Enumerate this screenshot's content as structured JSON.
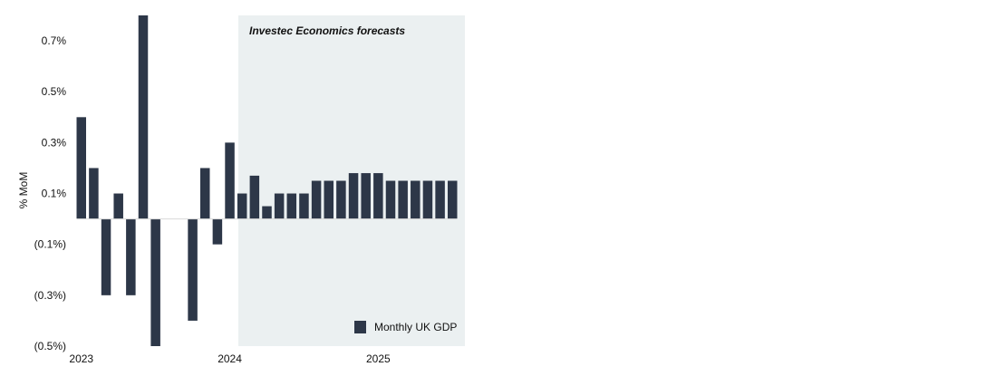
{
  "chart_data": {
    "type": "bar",
    "ylabel": "% MoM",
    "ylim": [
      -0.5,
      0.8
    ],
    "y_ticks": [
      0.7,
      0.5,
      0.3,
      0.1,
      -0.1,
      -0.3,
      -0.5
    ],
    "y_tick_labels": [
      "0.7%",
      "0.5%",
      "0.3%",
      "0.1%",
      "(0.1%)",
      "(0.3%)",
      "(0.5%)"
    ],
    "x_tick_labels": [
      "2023",
      "2024",
      "2025"
    ],
    "x_tick_month_index": [
      0,
      12,
      24
    ],
    "months": [
      "Jan 2023",
      "Feb 2023",
      "Mar 2023",
      "Apr 2023",
      "May 2023",
      "Jun 2023",
      "Jul 2023",
      "Aug 2023",
      "Sep 2023",
      "Oct 2023",
      "Nov 2023",
      "Dec 2023",
      "Jan 2024",
      "Feb 2024",
      "Mar 2024",
      "Apr 2024",
      "May 2024",
      "Jun 2024",
      "Jul 2024",
      "Aug 2024",
      "Sep 2024",
      "Oct 2024",
      "Nov 2024",
      "Dec 2024",
      "Jan 2025",
      "Feb 2025",
      "Mar 2025",
      "Apr 2025",
      "May 2025",
      "Jun 2025",
      "Jul 2025"
    ],
    "series": [
      {
        "name": "Monthly UK GDP",
        "color": "#2d3748",
        "values": [
          0.4,
          0.2,
          -0.3,
          0.1,
          -0.3,
          0.8,
          -0.5,
          0.0,
          0.0,
          -0.4,
          0.2,
          -0.1,
          0.3,
          0.1,
          0.17,
          0.05,
          0.1,
          0.1,
          0.1,
          0.15,
          0.15,
          0.15,
          0.18,
          0.18,
          0.18,
          0.15,
          0.15,
          0.15,
          0.15,
          0.15,
          0.15
        ]
      }
    ],
    "forecast_region": {
      "label": "Investec Economics forecasts",
      "start_month_index": 13,
      "color": "#ebf0f1"
    },
    "legend": {
      "label": "Monthly UK GDP",
      "position": "bottom-right"
    },
    "grid": false
  }
}
